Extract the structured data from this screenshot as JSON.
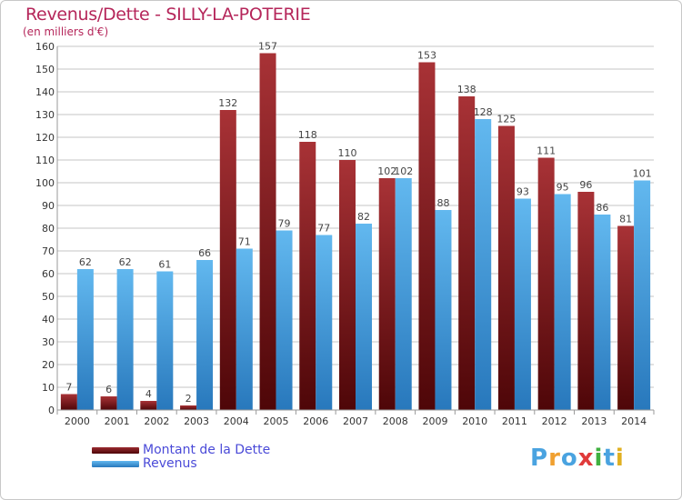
{
  "header": {
    "title": "Revenus/Dette - SILLY-LA-POTERIE",
    "subtitle": "(en milliers d'€)"
  },
  "legend": {
    "items": [
      {
        "label": "Montant de la Dette",
        "color": "#7a1518"
      },
      {
        "label": "Revenus",
        "color": "#4aa3e0"
      }
    ]
  },
  "logo": {
    "text": "Proxiti",
    "colors": [
      "#4aa3e0",
      "#f0a030",
      "#4aa3e0",
      "#e03a3a",
      "#40b040",
      "#4aa3e0",
      "#e0b020"
    ]
  },
  "chart_data": {
    "type": "bar",
    "title": "Revenus/Dette - SILLY-LA-POTERIE",
    "subtitle": "(en milliers d'€)",
    "xlabel": "",
    "ylabel": "",
    "categories": [
      "2000",
      "2001",
      "2002",
      "2003",
      "2004",
      "2005",
      "2006",
      "2007",
      "2008",
      "2009",
      "2010",
      "2011",
      "2012",
      "2013",
      "2014"
    ],
    "ylim": [
      0,
      160
    ],
    "yticks": [
      0,
      10,
      20,
      30,
      40,
      50,
      60,
      70,
      80,
      90,
      100,
      110,
      120,
      130,
      140,
      150,
      160
    ],
    "grid": true,
    "legend_position": "bottom-left",
    "series": [
      {
        "name": "Montant de la Dette",
        "color": "#7a1518",
        "values": [
          7,
          6,
          4,
          2,
          132,
          157,
          118,
          110,
          102,
          153,
          138,
          125,
          111,
          96,
          81
        ]
      },
      {
        "name": "Revenus",
        "color": "#4aa3e0",
        "values": [
          62,
          62,
          61,
          66,
          71,
          79,
          77,
          82,
          102,
          88,
          128,
          93,
          95,
          86,
          101
        ]
      }
    ]
  }
}
